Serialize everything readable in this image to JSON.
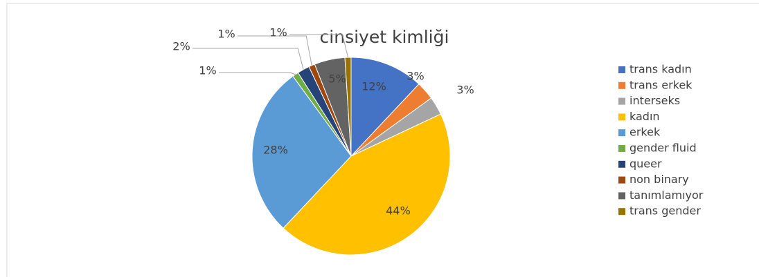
{
  "chart_data": {
    "type": "pie",
    "title": "cinsiyet kimliği",
    "categories": [
      "trans kadın",
      "trans erkek",
      "interseks",
      "kadın",
      "erkek",
      "gender fluid",
      "queer",
      "non binary",
      "tanımlamıyor",
      "trans gender"
    ],
    "values": [
      12,
      3,
      3,
      44,
      28,
      1,
      2,
      1,
      5,
      1
    ],
    "value_labels": [
      "12%",
      "3%",
      "3%",
      "44%",
      "28%",
      "1%",
      "2%",
      "1%",
      "5%",
      "1%"
    ],
    "colors": [
      "#4472c4",
      "#ed7d31",
      "#a5a5a5",
      "#ffc000",
      "#5b9bd5",
      "#70ad47",
      "#264478",
      "#9e480e",
      "#636363",
      "#997300"
    ],
    "legend": "right"
  }
}
